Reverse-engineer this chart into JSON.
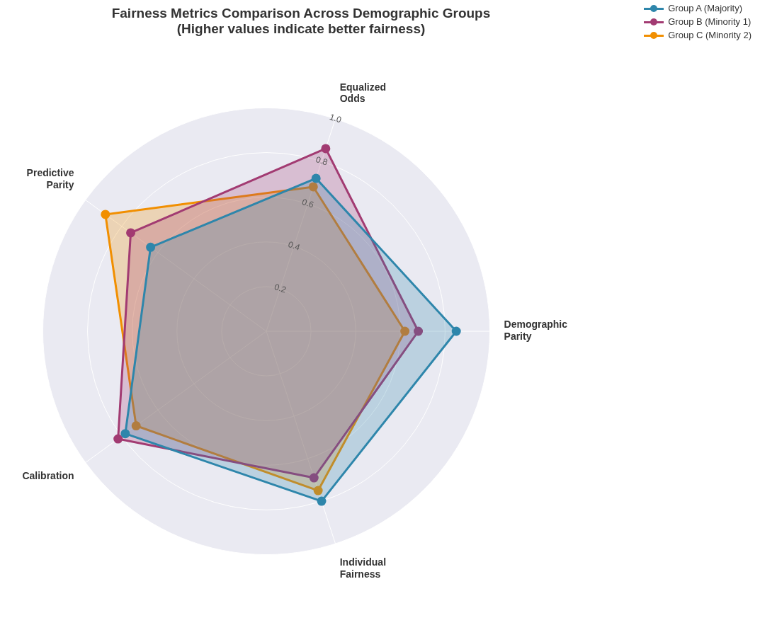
{
  "chart_data": {
    "type": "radar",
    "title": "Fairness Metrics Comparison Across Demographic Groups",
    "subtitle": "(Higher values indicate better fairness)",
    "categories": [
      "Equalized Odds",
      "Demographic Parity",
      "Individual Fairness",
      "Calibration",
      "Predictive Parity"
    ],
    "series": [
      {
        "name": "Group A (Majority)",
        "color": "#2e86ab",
        "values": [
          0.72,
          0.85,
          0.8,
          0.78,
          0.64
        ]
      },
      {
        "name": "Group B (Minority 1)",
        "color": "#a23b72",
        "values": [
          0.86,
          0.68,
          0.69,
          0.82,
          0.75
        ]
      },
      {
        "name": "Group C (Minority 2)",
        "color": "#f18f01",
        "values": [
          0.68,
          0.62,
          0.75,
          0.72,
          0.89
        ]
      }
    ],
    "ylim": [
      0,
      1
    ],
    "yticks": [
      0.2,
      0.4,
      0.6,
      0.8,
      {
        "value": 1,
        "label": "1.0"
      }
    ],
    "grid": true,
    "legend": "top right",
    "marker": "circle"
  }
}
